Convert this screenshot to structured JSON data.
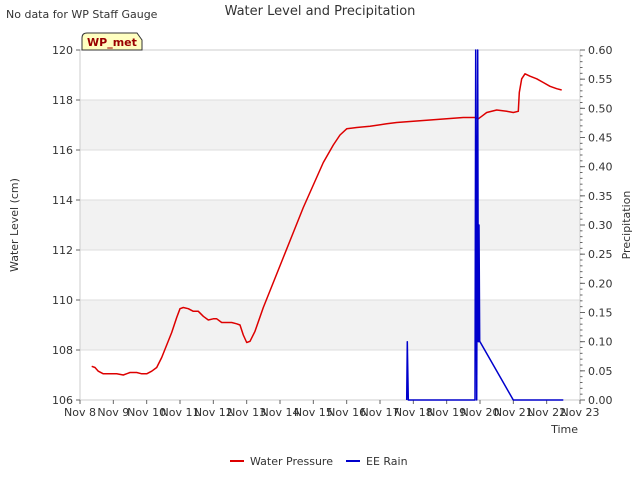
{
  "chart_data": {
    "type": "line",
    "title": "Water Level and Precipitation",
    "corner_note": "No data for WP Staff Gauge",
    "station_label": "WP_met",
    "xlabel": "Time",
    "ylabel_left": "Water Level (cm)",
    "ylabel_right": "Precipitation",
    "x_ticks": [
      "Nov 8",
      "Nov 9",
      "Nov 10",
      "Nov 11",
      "Nov 12",
      "Nov 13",
      "Nov 14",
      "Nov 15",
      "Nov 16",
      "Nov 17",
      "Nov 18",
      "Nov 19",
      "Nov 20",
      "Nov 21",
      "Nov 22",
      "Nov 23"
    ],
    "xlim_days": [
      8,
      23
    ],
    "ylim_left": [
      106,
      120
    ],
    "y_ticks_left": [
      "106",
      "108",
      "110",
      "112",
      "114",
      "116",
      "118",
      "120"
    ],
    "ylim_right": [
      0,
      0.6
    ],
    "y_ticks_right": [
      "0.00",
      "0.05",
      "0.10",
      "0.15",
      "0.20",
      "0.25",
      "0.30",
      "0.35",
      "0.40",
      "0.45",
      "0.50",
      "0.55",
      "0.60"
    ],
    "legend_position": "bottom-center",
    "series": [
      {
        "name": "Water Pressure",
        "axis": "left",
        "color": "#dd0000",
        "points": [
          [
            8.35,
            107.35
          ],
          [
            8.45,
            107.3
          ],
          [
            8.55,
            107.15
          ],
          [
            8.7,
            107.05
          ],
          [
            8.9,
            107.05
          ],
          [
            9.1,
            107.05
          ],
          [
            9.3,
            107.0
          ],
          [
            9.5,
            107.1
          ],
          [
            9.7,
            107.1
          ],
          [
            9.85,
            107.05
          ],
          [
            10.0,
            107.05
          ],
          [
            10.15,
            107.15
          ],
          [
            10.3,
            107.3
          ],
          [
            10.45,
            107.7
          ],
          [
            10.6,
            108.2
          ],
          [
            10.75,
            108.7
          ],
          [
            10.9,
            109.3
          ],
          [
            11.0,
            109.65
          ],
          [
            11.1,
            109.7
          ],
          [
            11.25,
            109.65
          ],
          [
            11.4,
            109.55
          ],
          [
            11.55,
            109.55
          ],
          [
            11.7,
            109.35
          ],
          [
            11.85,
            109.2
          ],
          [
            12.0,
            109.25
          ],
          [
            12.1,
            109.25
          ],
          [
            12.25,
            109.1
          ],
          [
            12.4,
            109.1
          ],
          [
            12.55,
            109.1
          ],
          [
            12.7,
            109.05
          ],
          [
            12.8,
            109.0
          ],
          [
            12.9,
            108.6
          ],
          [
            13.0,
            108.3
          ],
          [
            13.1,
            108.35
          ],
          [
            13.25,
            108.75
          ],
          [
            13.5,
            109.7
          ],
          [
            13.8,
            110.7
          ],
          [
            14.1,
            111.7
          ],
          [
            14.4,
            112.7
          ],
          [
            14.7,
            113.7
          ],
          [
            15.0,
            114.6
          ],
          [
            15.3,
            115.5
          ],
          [
            15.6,
            116.2
          ],
          [
            15.8,
            116.6
          ],
          [
            16.0,
            116.85
          ],
          [
            16.3,
            116.9
          ],
          [
            16.7,
            116.95
          ],
          [
            17.2,
            117.05
          ],
          [
            17.5,
            117.1
          ],
          [
            18.0,
            117.15
          ],
          [
            18.5,
            117.2
          ],
          [
            19.0,
            117.25
          ],
          [
            19.5,
            117.3
          ],
          [
            19.85,
            117.3
          ],
          [
            19.95,
            117.25
          ],
          [
            20.05,
            117.35
          ],
          [
            20.2,
            117.5
          ],
          [
            20.5,
            117.6
          ],
          [
            20.8,
            117.55
          ],
          [
            21.0,
            117.5
          ],
          [
            21.15,
            117.55
          ],
          [
            21.18,
            118.3
          ],
          [
            21.25,
            118.85
          ],
          [
            21.35,
            119.05
          ],
          [
            21.5,
            118.95
          ],
          [
            21.7,
            118.85
          ],
          [
            21.9,
            118.7
          ],
          [
            22.1,
            118.55
          ],
          [
            22.3,
            118.45
          ],
          [
            22.45,
            118.4
          ]
        ]
      },
      {
        "name": "EE Rain",
        "axis": "right",
        "color": "#0000cc",
        "points": [
          [
            17.8,
            0.0
          ],
          [
            17.82,
            0.1
          ],
          [
            17.85,
            0.0
          ],
          [
            19.85,
            0.0
          ],
          [
            19.87,
            0.6
          ],
          [
            19.9,
            0.0
          ],
          [
            19.93,
            0.6
          ],
          [
            19.95,
            0.1
          ],
          [
            19.97,
            0.3
          ],
          [
            19.99,
            0.1
          ],
          [
            20.0,
            0.1
          ],
          [
            21.0,
            0.0
          ],
          [
            22.5,
            0.0
          ]
        ]
      }
    ]
  }
}
